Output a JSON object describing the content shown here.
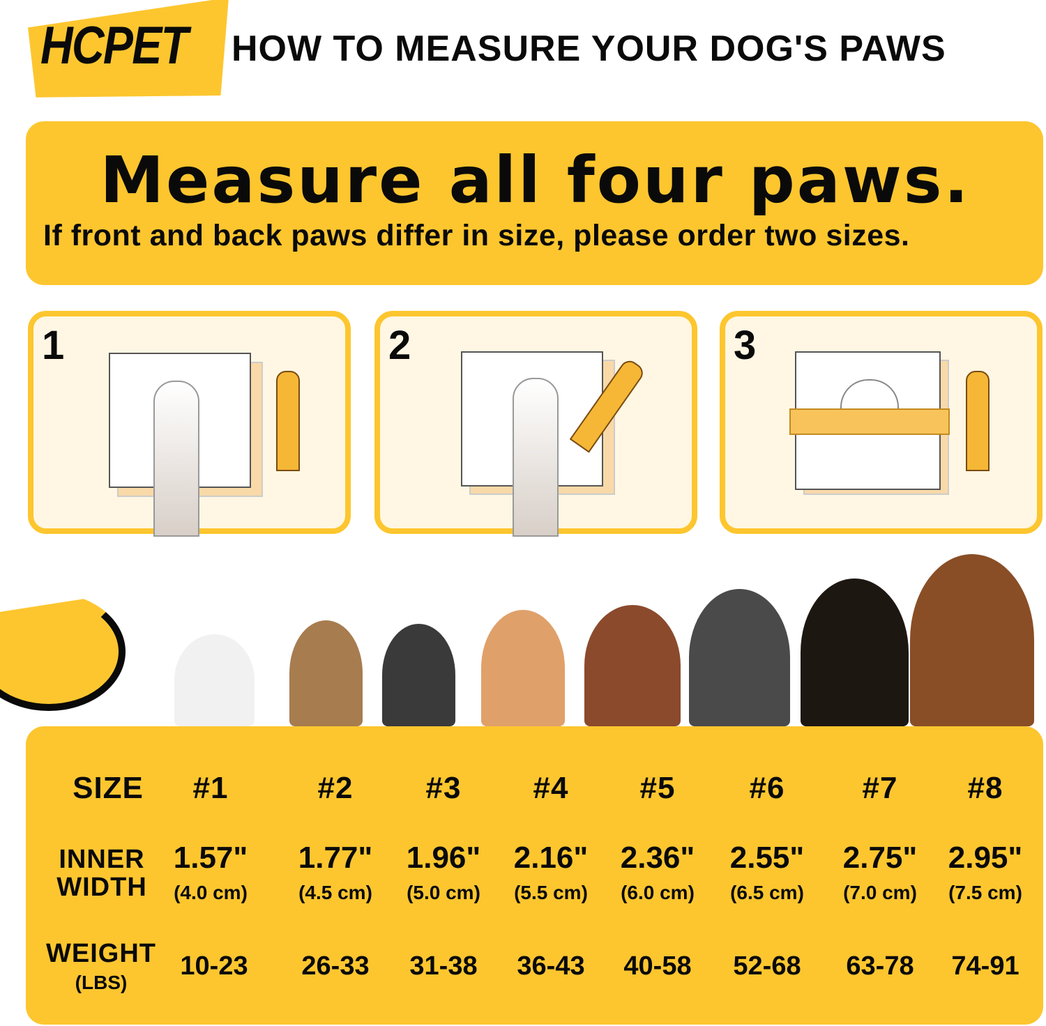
{
  "brand": {
    "logo": "HCPET",
    "color": "#FDC62F"
  },
  "header": {
    "title": "HOW TO MEASURE YOUR DOG'S PAWS"
  },
  "banner": {
    "title": "Measure all four paws.",
    "subtitle": "If front and back paws differ in size, please order two sizes."
  },
  "steps": [
    {
      "number": "1",
      "icon": "paw-on-paper"
    },
    {
      "number": "2",
      "icon": "trace-paw-with-pencil"
    },
    {
      "number": "3",
      "icon": "measure-outline-with-ruler"
    }
  ],
  "table": {
    "labels": {
      "size": "SIZE",
      "width_1": "INNER",
      "width_2": "WIDTH",
      "weight": "WEIGHT",
      "weight_unit": "(LBS)"
    },
    "columns": [
      {
        "size": "#1",
        "inch": "1.57\"",
        "cm": "(4.0 cm)",
        "weight": "10-23"
      },
      {
        "size": "#2",
        "inch": "1.77\"",
        "cm": "(4.5 cm)",
        "weight": "26-33"
      },
      {
        "size": "#3",
        "inch": "1.96\"",
        "cm": "(5.0 cm)",
        "weight": "31-38"
      },
      {
        "size": "#4",
        "inch": "2.16\"",
        "cm": "(5.5 cm)",
        "weight": "36-43"
      },
      {
        "size": "#5",
        "inch": "2.36\"",
        "cm": "(6.0 cm)",
        "weight": "40-58"
      },
      {
        "size": "#6",
        "inch": "2.55\"",
        "cm": "(6.5 cm)",
        "weight": "52-68"
      },
      {
        "size": "#7",
        "inch": "2.75\"",
        "cm": "(7.0 cm)",
        "weight": "63-78"
      },
      {
        "size": "#8",
        "inch": "2.95\"",
        "cm": "(7.5 cm)",
        "weight": "74-91"
      }
    ]
  }
}
